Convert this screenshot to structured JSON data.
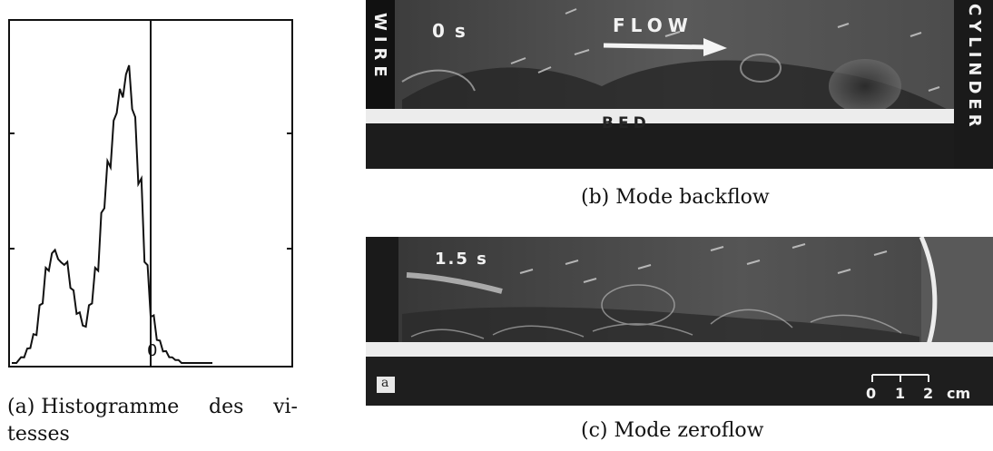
{
  "panel_a": {
    "zero_label": "0",
    "caption_parts": [
      "(a) Histogramme",
      "des",
      "vi-"
    ],
    "caption_line2": "tesses"
  },
  "panel_b": {
    "time": "0 s",
    "flow_label": "FLOW",
    "wire_label": "WIRE",
    "cylinder_label": "CYLINDER",
    "bed_label": "BED",
    "caption": "(b) Mode backflow"
  },
  "panel_c": {
    "time": "1.5 s",
    "corner_label": "a",
    "scale_ticks": [
      "0",
      "1",
      "2"
    ],
    "scale_unit": "cm",
    "caption": "(c) Mode zeroflow"
  },
  "chart_data": {
    "type": "line",
    "title": "",
    "xlabel": "",
    "ylabel": "",
    "x_tick_labels": [
      "0"
    ],
    "series": [
      {
        "x": [
          -4.5,
          -4.2,
          -4.0,
          -3.8,
          -3.6,
          -3.4,
          -3.2,
          -3.0,
          -2.8,
          -2.6,
          -2.4,
          -2.2,
          -2.0,
          -1.8,
          -1.6,
          -1.4,
          -1.2,
          -1.0,
          -0.8,
          -0.6,
          -0.4,
          -0.2,
          0.0,
          0.2,
          0.4,
          0.6,
          0.8,
          1.0,
          1.2,
          1.5,
          2.0
        ],
        "y": [
          0.0,
          0.02,
          0.05,
          0.1,
          0.2,
          0.33,
          0.38,
          0.36,
          0.34,
          0.26,
          0.17,
          0.13,
          0.2,
          0.33,
          0.52,
          0.7,
          0.84,
          0.95,
          1.0,
          0.88,
          0.62,
          0.35,
          0.16,
          0.08,
          0.04,
          0.02,
          0.01,
          0.0,
          0.0,
          0.0,
          0.0
        ]
      }
    ]
  }
}
